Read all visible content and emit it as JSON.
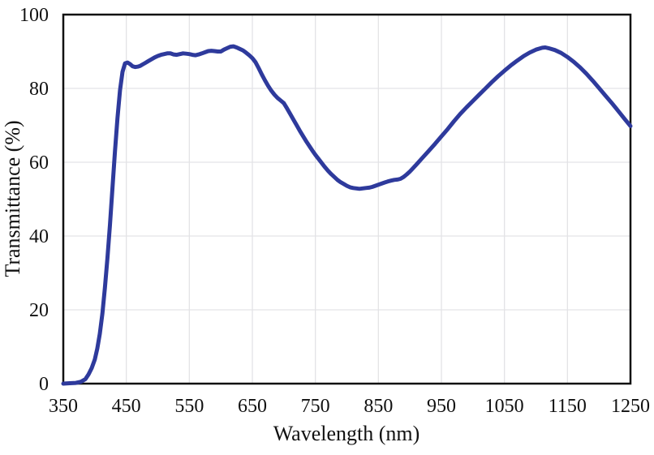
{
  "chart_data": {
    "type": "line",
    "title": "",
    "xlabel": "Wavelength (nm)",
    "ylabel": "Transmittance (%)",
    "xlim": [
      350,
      1250
    ],
    "ylim": [
      0,
      100
    ],
    "x_ticks": [
      350,
      450,
      550,
      650,
      750,
      850,
      950,
      1050,
      1150,
      1250
    ],
    "y_ticks": [
      0,
      20,
      40,
      60,
      80,
      100
    ],
    "grid": true,
    "legend": "none",
    "colors": {
      "line": "#2e3a9c",
      "grid": "#e3e3e6",
      "axis": "#111111",
      "background": "#ffffff"
    },
    "line_width": 5,
    "series": [
      {
        "name": "transmittance",
        "points": [
          [
            350,
            0
          ],
          [
            360,
            0.1
          ],
          [
            370,
            0.2
          ],
          [
            378,
            0.5
          ],
          [
            385,
            1.2
          ],
          [
            390,
            2.5
          ],
          [
            395,
            4.2
          ],
          [
            400,
            6.5
          ],
          [
            404,
            9.5
          ],
          [
            408,
            13.5
          ],
          [
            412,
            19
          ],
          [
            416,
            26
          ],
          [
            420,
            34
          ],
          [
            424,
            43
          ],
          [
            428,
            53
          ],
          [
            432,
            63
          ],
          [
            436,
            72
          ],
          [
            440,
            79.5
          ],
          [
            444,
            84.5
          ],
          [
            448,
            86.8
          ],
          [
            452,
            87.0
          ],
          [
            456,
            86.6
          ],
          [
            460,
            86.0
          ],
          [
            464,
            85.8
          ],
          [
            468,
            85.9
          ],
          [
            472,
            86.1
          ],
          [
            476,
            86.5
          ],
          [
            480,
            86.9
          ],
          [
            485,
            87.4
          ],
          [
            490,
            87.9
          ],
          [
            495,
            88.4
          ],
          [
            500,
            88.8
          ],
          [
            505,
            89.1
          ],
          [
            510,
            89.3
          ],
          [
            515,
            89.5
          ],
          [
            520,
            89.5
          ],
          [
            525,
            89.2
          ],
          [
            530,
            89.1
          ],
          [
            535,
            89.3
          ],
          [
            540,
            89.5
          ],
          [
            545,
            89.4
          ],
          [
            550,
            89.3
          ],
          [
            555,
            89.1
          ],
          [
            560,
            89.0
          ],
          [
            565,
            89.2
          ],
          [
            570,
            89.5
          ],
          [
            575,
            89.8
          ],
          [
            580,
            90.1
          ],
          [
            585,
            90.2
          ],
          [
            590,
            90.1
          ],
          [
            595,
            90.0
          ],
          [
            600,
            90.0
          ],
          [
            605,
            90.5
          ],
          [
            610,
            90.9
          ],
          [
            615,
            91.3
          ],
          [
            620,
            91.4
          ],
          [
            625,
            91.1
          ],
          [
            630,
            90.7
          ],
          [
            635,
            90.3
          ],
          [
            640,
            89.7
          ],
          [
            645,
            89.0
          ],
          [
            650,
            88.2
          ],
          [
            655,
            87.1
          ],
          [
            660,
            85.5
          ],
          [
            665,
            83.8
          ],
          [
            670,
            82.2
          ],
          [
            675,
            80.7
          ],
          [
            680,
            79.4
          ],
          [
            685,
            78.3
          ],
          [
            690,
            77.4
          ],
          [
            695,
            76.7
          ],
          [
            700,
            76.0
          ],
          [
            705,
            74.6
          ],
          [
            710,
            73.1
          ],
          [
            715,
            71.6
          ],
          [
            720,
            70.1
          ],
          [
            725,
            68.6
          ],
          [
            730,
            67.2
          ],
          [
            735,
            65.8
          ],
          [
            740,
            64.5
          ],
          [
            745,
            63.2
          ],
          [
            750,
            62.0
          ],
          [
            755,
            60.9
          ],
          [
            760,
            59.8
          ],
          [
            765,
            58.7
          ],
          [
            770,
            57.7
          ],
          [
            775,
            56.8
          ],
          [
            780,
            56.0
          ],
          [
            785,
            55.2
          ],
          [
            790,
            54.6
          ],
          [
            795,
            54.1
          ],
          [
            800,
            53.6
          ],
          [
            805,
            53.2
          ],
          [
            810,
            53.0
          ],
          [
            815,
            52.9
          ],
          [
            820,
            52.8
          ],
          [
            825,
            52.9
          ],
          [
            830,
            53.0
          ],
          [
            835,
            53.1
          ],
          [
            840,
            53.3
          ],
          [
            845,
            53.6
          ],
          [
            850,
            53.9
          ],
          [
            855,
            54.2
          ],
          [
            860,
            54.5
          ],
          [
            865,
            54.8
          ],
          [
            870,
            55.0
          ],
          [
            875,
            55.2
          ],
          [
            880,
            55.3
          ],
          [
            885,
            55.5
          ],
          [
            890,
            56.0
          ],
          [
            895,
            56.7
          ],
          [
            900,
            57.5
          ],
          [
            910,
            59.3
          ],
          [
            920,
            61.2
          ],
          [
            930,
            63.1
          ],
          [
            940,
            65.0
          ],
          [
            950,
            67.0
          ],
          [
            960,
            69.0
          ],
          [
            970,
            71.1
          ],
          [
            980,
            73.1
          ],
          [
            990,
            74.9
          ],
          [
            1000,
            76.6
          ],
          [
            1010,
            78.3
          ],
          [
            1020,
            80.0
          ],
          [
            1030,
            81.7
          ],
          [
            1040,
            83.3
          ],
          [
            1050,
            84.8
          ],
          [
            1060,
            86.2
          ],
          [
            1070,
            87.5
          ],
          [
            1080,
            88.7
          ],
          [
            1090,
            89.7
          ],
          [
            1100,
            90.5
          ],
          [
            1110,
            91.0
          ],
          [
            1115,
            91.1
          ],
          [
            1120,
            90.9
          ],
          [
            1130,
            90.4
          ],
          [
            1140,
            89.6
          ],
          [
            1150,
            88.5
          ],
          [
            1160,
            87.2
          ],
          [
            1170,
            85.7
          ],
          [
            1180,
            84.0
          ],
          [
            1190,
            82.1
          ],
          [
            1200,
            80.1
          ],
          [
            1210,
            78.1
          ],
          [
            1220,
            76.1
          ],
          [
            1230,
            74.0
          ],
          [
            1240,
            71.9
          ],
          [
            1250,
            69.8
          ]
        ]
      }
    ]
  }
}
